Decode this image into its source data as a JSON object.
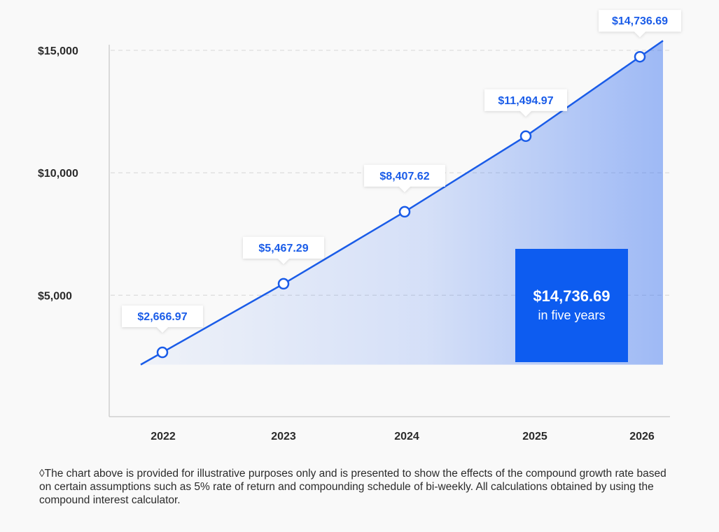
{
  "chart_data": {
    "type": "area",
    "title": "",
    "xlabel": "",
    "ylabel": "",
    "categories": [
      "2022",
      "2023",
      "2024",
      "2025",
      "2026"
    ],
    "values": [
      2666.97,
      5467.29,
      8407.62,
      11494.97,
      14736.69
    ],
    "point_labels": [
      "$2,666.97",
      "$5,467.29",
      "$8,407.62",
      "$11,494.97",
      "$14,736.69"
    ],
    "y_ticks": [
      {
        "value": 5000,
        "label": "$5,000"
      },
      {
        "value": 10000,
        "label": "$10,000"
      },
      {
        "value": 15000,
        "label": "$15,000"
      }
    ],
    "ylim": [
      0,
      15000
    ],
    "grid": "horizontal dashed",
    "line_color": "#1a5ce8"
  },
  "summary": {
    "value": "$14,736.69",
    "caption": "in five years",
    "color": "#0d5cf0"
  },
  "footnote": "◊The chart above is provided for illustrative purposes only and is presented to show the effects of the compound growth rate based on certain assumptions such as 5% rate of return and compounding schedule of bi-weekly. All calculations obtained by using the compound interest calculator."
}
